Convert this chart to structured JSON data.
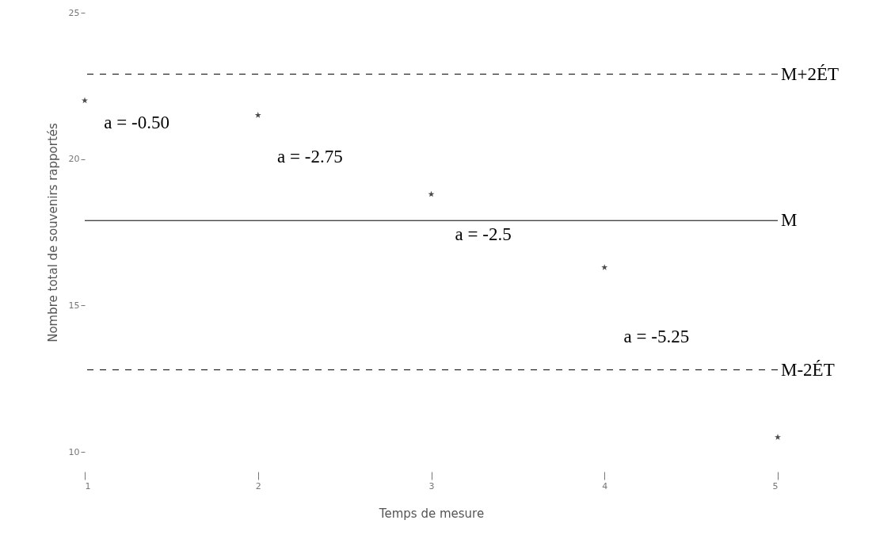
{
  "chart_data": {
    "type": "scatter",
    "xlabel": "Temps de mesure",
    "ylabel": "Nombre total de souvenirs rapportés",
    "x": [
      1,
      2,
      3,
      4,
      5
    ],
    "series": [
      {
        "color": "#000000",
        "values": [
          22.0,
          21.5,
          18.8,
          16.3,
          10.5
        ]
      }
    ],
    "marker": "star",
    "xlim": [
      1,
      5
    ],
    "xticks": [
      1,
      2,
      3,
      4,
      5
    ],
    "ylim": [
      10,
      25
    ],
    "yticks": [
      10,
      15,
      20,
      25
    ],
    "ref_lines": [
      {
        "axis": "y",
        "value": 22.9,
        "label": "M+2ÉT",
        "line_style": "dashed",
        "color": "#000000"
      },
      {
        "axis": "y",
        "value": 17.9,
        "label": "M",
        "line_style": "solid",
        "color": "#000000"
      },
      {
        "axis": "y",
        "value": 12.8,
        "label": "M-2ÉT",
        "line_style": "dashed",
        "color": "#000000"
      }
    ],
    "annotations": [
      "a = -0.50",
      "a = -2.75",
      "a = -2.5",
      "a = -5.25"
    ]
  }
}
